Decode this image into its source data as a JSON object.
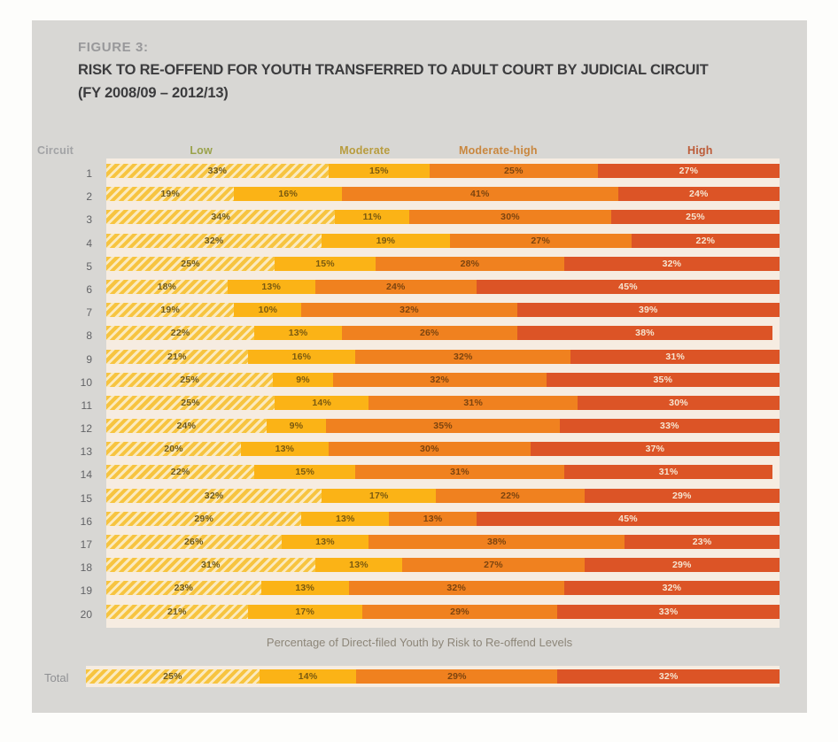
{
  "panel": {
    "figure_label": "FIGURE 3:",
    "title_line1": "RISK TO RE-OFFEND FOR YOUTH TRANSFERRED TO ADULT COURT BY JUDICIAL CIRCUIT",
    "title_line2": "(FY 2008/09 – 2012/13)"
  },
  "headers": {
    "circuit": "Circuit",
    "positions_pct": [
      14.1,
      38.4,
      58.2,
      88.2
    ]
  },
  "axis_label": "Percentage of Direct-filed Youth by Risk to Re-offend Levels",
  "colors": {
    "panel_bg": "#d8d7d4",
    "row_strip": "#f6ece1",
    "low_base": "#f7c440",
    "low_stripe": "#fbeabf",
    "moderate": "#fbb316",
    "moderate_high": "#f0811f",
    "high": "#dc5426",
    "header_low": "#9aa24b",
    "header_moderate": "#b89c3e",
    "header_moderate_high": "#c9873f",
    "header_high": "#bc5b38",
    "label_light": "#f6e5d1"
  },
  "chart_data": {
    "type": "bar",
    "variant": "horizontal-stacked",
    "title": "RISK TO RE-OFFEND FOR YOUTH TRANSFERRED TO ADULT COURT BY JUDICIAL CIRCUIT (FY 2008/09 – 2012/13)",
    "xlabel": "Percentage of Direct-filed Youth by Risk to Re-offend Levels",
    "unit": "%",
    "xlim": [
      0,
      100
    ],
    "legend_position": "top-as-column-headers",
    "grid": false,
    "series_names": [
      "Low",
      "Moderate",
      "Moderate-high",
      "High"
    ],
    "categories": [
      "1",
      "2",
      "3",
      "4",
      "5",
      "6",
      "7",
      "8",
      "9",
      "10",
      "11",
      "12",
      "13",
      "14",
      "15",
      "16",
      "17",
      "18",
      "19",
      "20"
    ],
    "rows": [
      {
        "circuit": "1",
        "values": [
          33,
          15,
          25,
          27
        ]
      },
      {
        "circuit": "2",
        "values": [
          19,
          16,
          41,
          24
        ]
      },
      {
        "circuit": "3",
        "values": [
          34,
          11,
          30,
          25
        ]
      },
      {
        "circuit": "4",
        "values": [
          32,
          19,
          27,
          22
        ]
      },
      {
        "circuit": "5",
        "values": [
          25,
          15,
          28,
          32
        ]
      },
      {
        "circuit": "6",
        "values": [
          18,
          13,
          24,
          45
        ]
      },
      {
        "circuit": "7",
        "values": [
          19,
          10,
          32,
          39
        ]
      },
      {
        "circuit": "8",
        "values": [
          22,
          13,
          26,
          38
        ]
      },
      {
        "circuit": "9",
        "values": [
          21,
          16,
          32,
          31
        ]
      },
      {
        "circuit": "10",
        "values": [
          25,
          9,
          32,
          35
        ]
      },
      {
        "circuit": "11",
        "values": [
          25,
          14,
          31,
          30
        ]
      },
      {
        "circuit": "12",
        "values": [
          24,
          9,
          35,
          33
        ]
      },
      {
        "circuit": "13",
        "values": [
          20,
          13,
          30,
          37
        ]
      },
      {
        "circuit": "14",
        "values": [
          22,
          15,
          31,
          31
        ]
      },
      {
        "circuit": "15",
        "values": [
          32,
          17,
          22,
          29
        ]
      },
      {
        "circuit": "16",
        "values": [
          29,
          13,
          13,
          45
        ]
      },
      {
        "circuit": "17",
        "values": [
          26,
          13,
          38,
          23
        ]
      },
      {
        "circuit": "18",
        "values": [
          31,
          13,
          27,
          29
        ]
      },
      {
        "circuit": "19",
        "values": [
          23,
          13,
          32,
          32
        ]
      },
      {
        "circuit": "20",
        "values": [
          21,
          17,
          29,
          33
        ]
      }
    ],
    "total": {
      "label": "Total",
      "values": [
        25,
        14,
        29,
        32
      ]
    }
  }
}
